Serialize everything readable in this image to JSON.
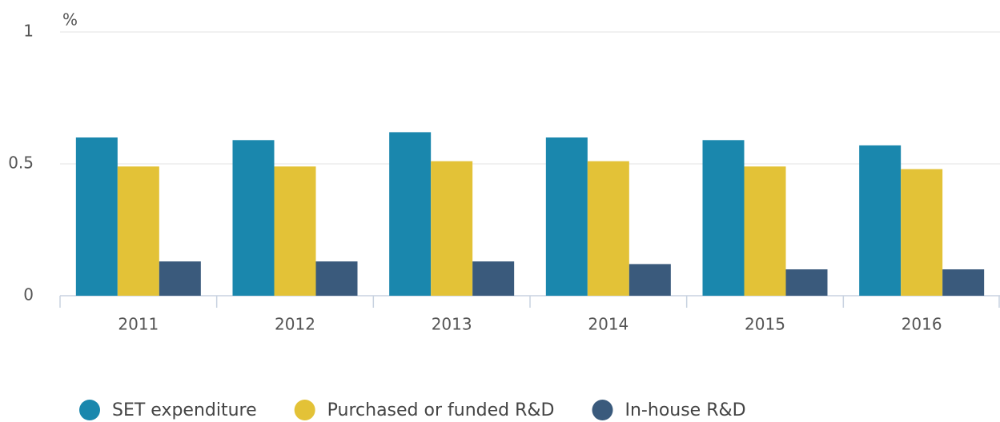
{
  "chart_data": {
    "type": "bar",
    "y_label": "%",
    "categories": [
      "2011",
      "2012",
      "2013",
      "2014",
      "2015",
      "2016"
    ],
    "series": [
      {
        "name": "SET expenditure",
        "color": "#1a87ad",
        "values": [
          0.6,
          0.59,
          0.62,
          0.6,
          0.59,
          0.57
        ]
      },
      {
        "name": "Purchased or funded R&D",
        "color": "#e3c237",
        "values": [
          0.49,
          0.49,
          0.51,
          0.51,
          0.49,
          0.48
        ]
      },
      {
        "name": "In-house R&D",
        "color": "#3a5a7c",
        "values": [
          0.13,
          0.13,
          0.13,
          0.12,
          0.1,
          0.1
        ]
      }
    ],
    "ylim": [
      0,
      1
    ],
    "yticks": [
      0,
      0.5,
      1
    ],
    "grid": true,
    "legend": "bottom"
  }
}
